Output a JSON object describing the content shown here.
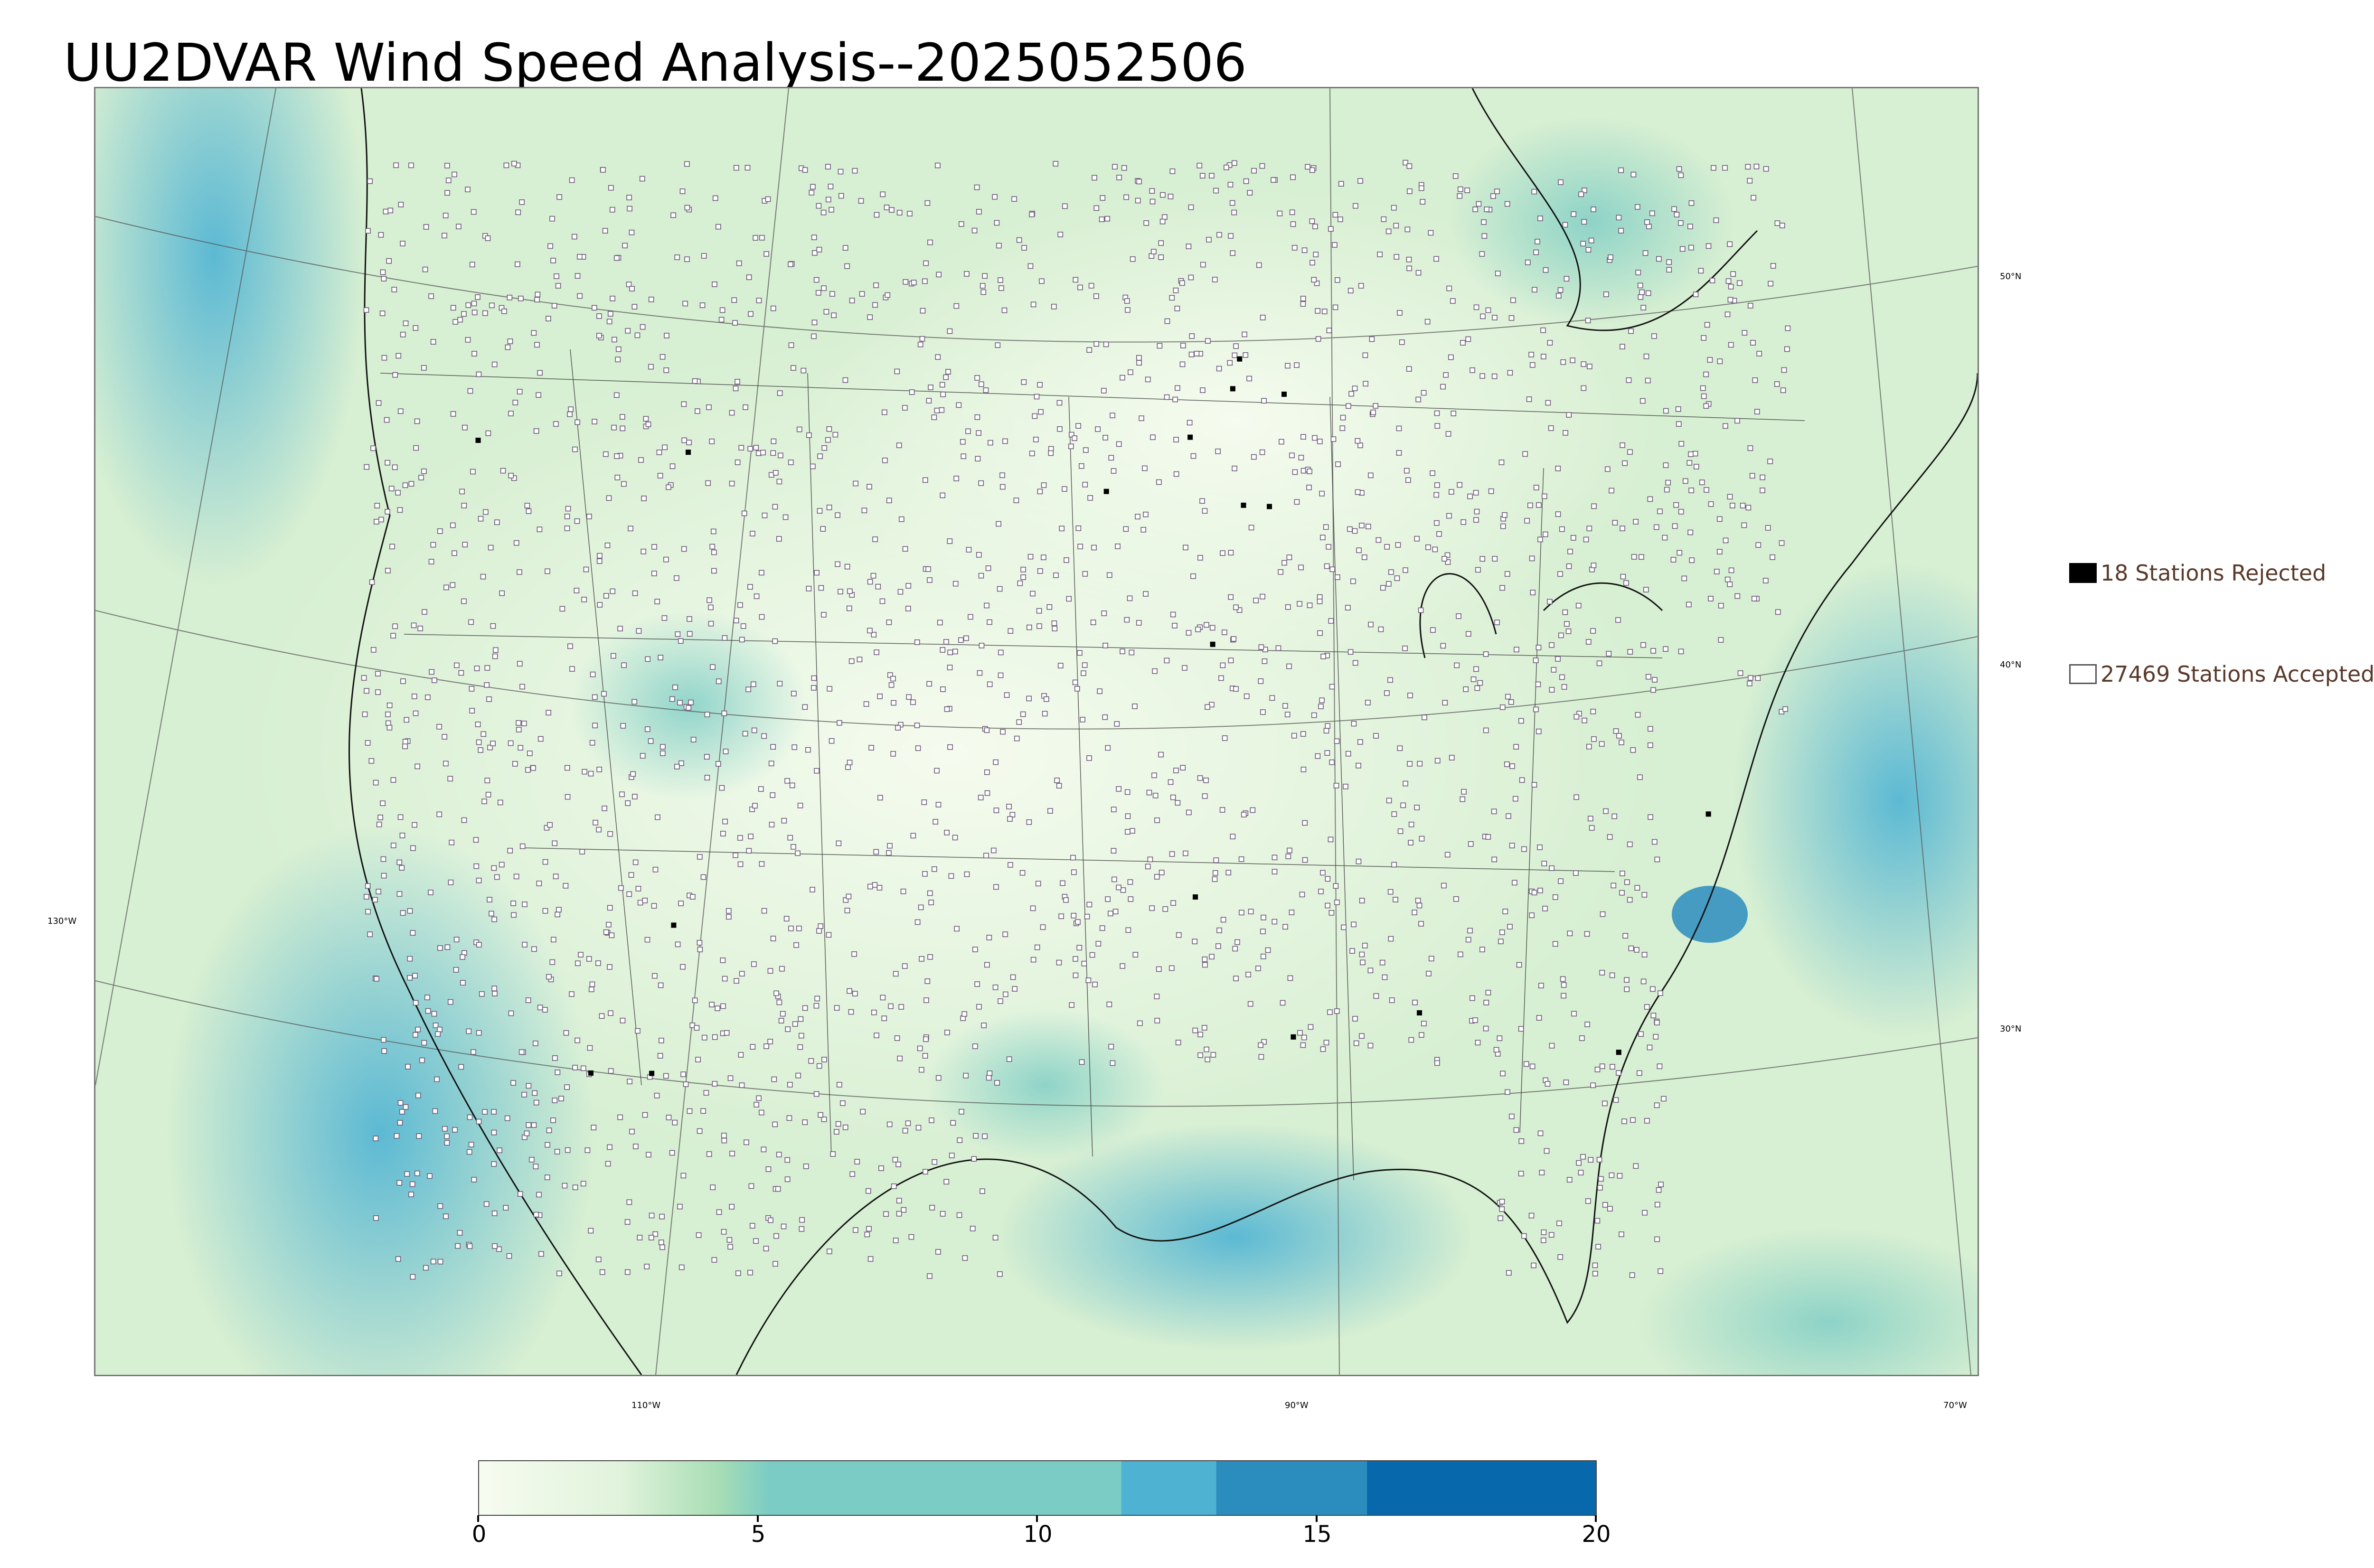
{
  "title": "UU2DVAR Wind Speed Analysis--2025052506",
  "map": {
    "lat_labels": [
      "50°N",
      "40°N",
      "30°N"
    ],
    "lon_labels": [
      "130°W",
      "110°W",
      "90°W",
      "70°W"
    ],
    "accepted_marker_color": "#6b5a78",
    "rejected_marker_color": "#000000"
  },
  "legend": {
    "rejected": "18 Stations Rejected",
    "accepted": "27469 Stations Accepted"
  },
  "colorbar": {
    "min": 0,
    "max": 20,
    "ticks": [
      "0",
      "5",
      "10",
      "15",
      "20"
    ],
    "colors": [
      "#f7fcf0",
      "#e0f3db",
      "#ccebc5",
      "#a8ddb5",
      "#7bccc4",
      "#4eb3d3",
      "#2b8cbe",
      "#0868ac"
    ],
    "band_edges": [
      0,
      3,
      5.5,
      8,
      10.2,
      11.5,
      13.2,
      15.9,
      20
    ]
  }
}
